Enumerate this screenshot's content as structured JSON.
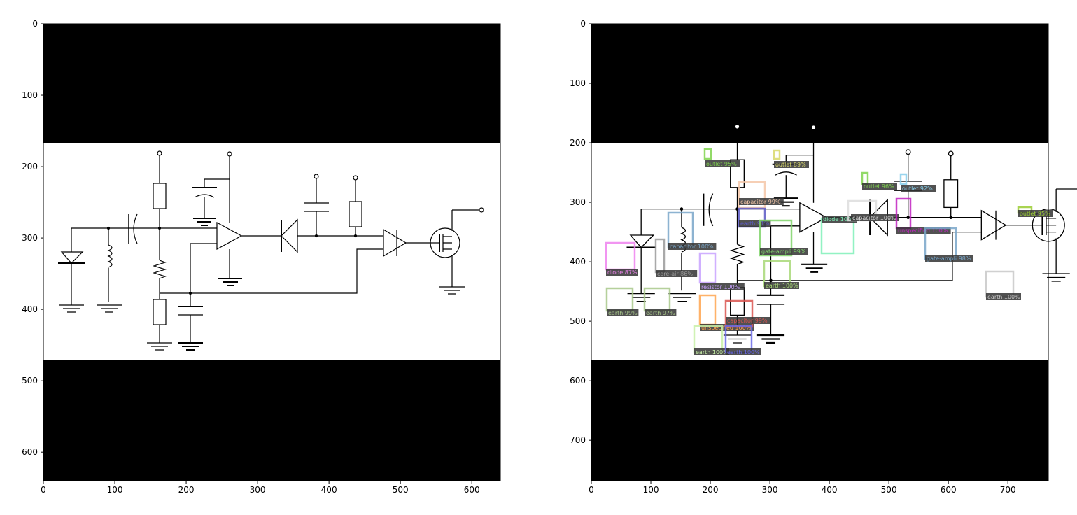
{
  "panels": [
    {
      "id": "original",
      "x_ticks": [
        "0",
        "100",
        "200",
        "300",
        "400",
        "500",
        "600"
      ],
      "y_ticks": [
        "0",
        "100",
        "200",
        "300",
        "400",
        "500",
        "600"
      ]
    },
    {
      "id": "detections",
      "x_ticks": [
        "0",
        "100",
        "200",
        "300",
        "400",
        "500",
        "600",
        "700"
      ],
      "y_ticks": [
        "0",
        "100",
        "200",
        "300",
        "400",
        "500",
        "600",
        "700"
      ]
    }
  ],
  "detections": [
    {
      "label": "outlet 95%",
      "color": "#7fd34e"
    },
    {
      "label": "outlet 89%",
      "color": "#d8d86a"
    },
    {
      "label": "capacitor 99%",
      "color": "#f4c7a8"
    },
    {
      "label": "earth 91%",
      "color": "#5a58c4"
    },
    {
      "label": "capacitor 100%",
      "color": "#79a6c9"
    },
    {
      "label": "core-air 86%",
      "color": "#9a9a9a"
    },
    {
      "label": "diode 87%",
      "color": "#ee82ee"
    },
    {
      "label": "resistor 100%",
      "color": "#c8a2ff"
    },
    {
      "label": "unspecified 100%",
      "color": "#ffa54f"
    },
    {
      "label": "capacitor 99%",
      "color": "#d9534f"
    },
    {
      "label": "earth 99%",
      "color": "#a8c88a"
    },
    {
      "label": "earth 97%",
      "color": "#a8c88a"
    },
    {
      "label": "earth 100%",
      "color": "#c8f0a8"
    },
    {
      "label": "earth 100%",
      "color": "#6a6ae8"
    },
    {
      "label": "gate-ampli 99%",
      "color": "#7fd36a"
    },
    {
      "label": "earth 100%",
      "color": "#a8d878"
    },
    {
      "label": "diode 100%",
      "color": "#7ff0b8"
    },
    {
      "label": "outlet 96%",
      "color": "#7fd34e"
    },
    {
      "label": "capacitor 100%",
      "color": "#dddddd"
    },
    {
      "label": "outlet 92%",
      "color": "#87ceeb"
    },
    {
      "label": "unspecified 100%",
      "color": "#c020c0"
    },
    {
      "label": "gate-ampli 98%",
      "color": "#79a6c9"
    },
    {
      "label": "outlet 95%",
      "color": "#9acd32"
    },
    {
      "label": "earth 100%",
      "color": "#c8c8c8"
    }
  ]
}
